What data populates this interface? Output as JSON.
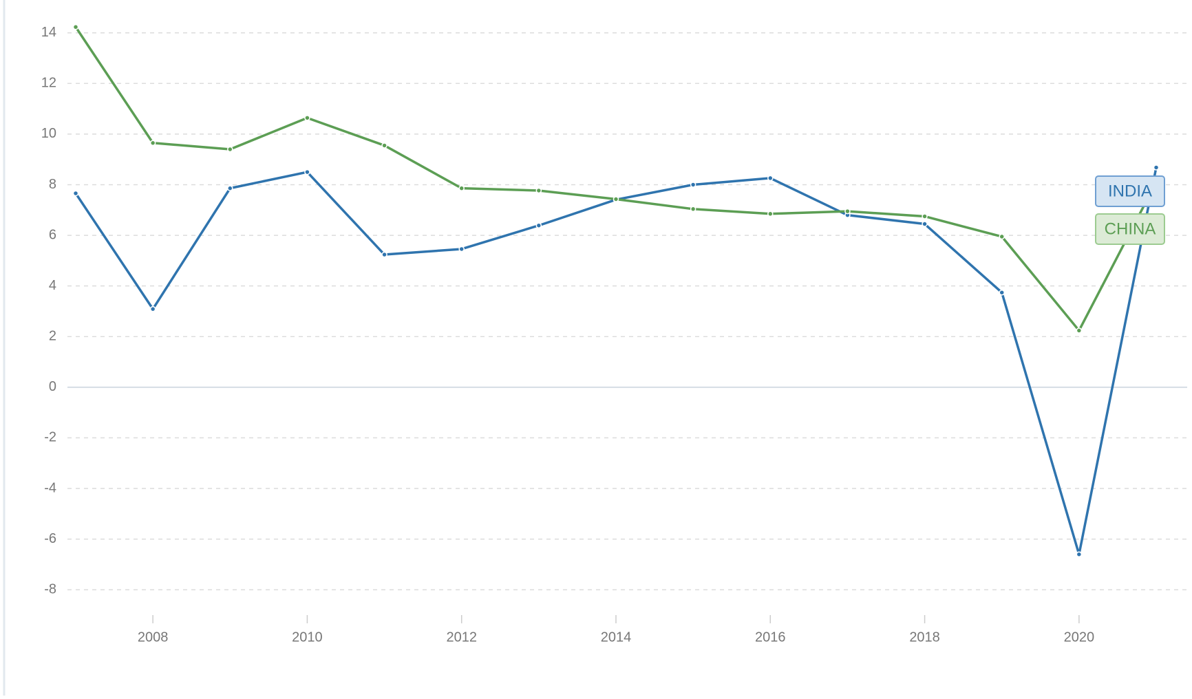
{
  "chart_data": {
    "type": "line",
    "x": [
      2007,
      2008,
      2009,
      2010,
      2011,
      2012,
      2013,
      2014,
      2015,
      2016,
      2017,
      2018,
      2019,
      2020,
      2021
    ],
    "series": [
      {
        "name": "INDIA",
        "color": "#2f74ae",
        "values": [
          7.66,
          3.09,
          7.86,
          8.5,
          5.24,
          5.46,
          6.39,
          7.41,
          8.0,
          8.26,
          6.8,
          6.45,
          3.74,
          -6.6,
          8.68
        ]
      },
      {
        "name": "CHINA",
        "color": "#5c9e54",
        "values": [
          14.23,
          9.65,
          9.4,
          10.64,
          9.55,
          7.86,
          7.77,
          7.43,
          7.04,
          6.85,
          6.95,
          6.75,
          5.95,
          2.24,
          8.1
        ]
      }
    ],
    "xlim": [
      2007,
      2021
    ],
    "xticks": [
      2008,
      2010,
      2012,
      2014,
      2016,
      2018,
      2020
    ],
    "ylim": [
      -9,
      14.4
    ],
    "yticks": [
      -8,
      -6,
      -4,
      -2,
      0,
      2,
      4,
      6,
      8,
      10,
      12,
      14
    ],
    "grid": true
  }
}
